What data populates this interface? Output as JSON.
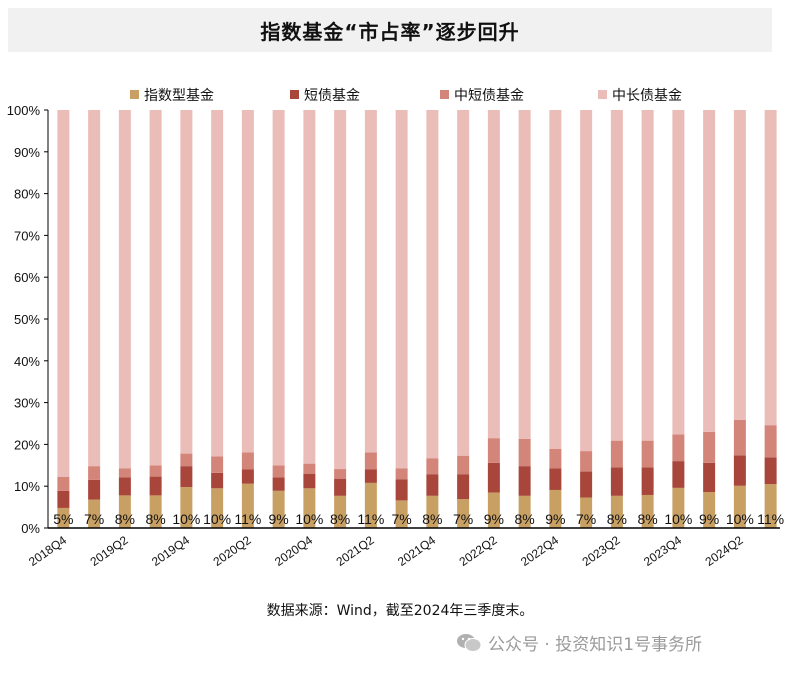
{
  "chart_data": {
    "type": "bar",
    "stacked": true,
    "title": "指数基金“市占率”逐步回升",
    "xlabel": "",
    "ylabel": "",
    "ylim": [
      0,
      100
    ],
    "yticks": [
      "0%",
      "10%",
      "20%",
      "30%",
      "40%",
      "50%",
      "60%",
      "70%",
      "80%",
      "90%",
      "100%"
    ],
    "legend_position": "top",
    "grid": false,
    "categories": [
      "2018Q4",
      "2019Q1",
      "2019Q2",
      "2019Q3",
      "2019Q4",
      "2020Q1",
      "2020Q2",
      "2020Q3",
      "2020Q4",
      "2021Q1",
      "2021Q2",
      "2021Q3",
      "2021Q4",
      "2022Q1",
      "2022Q2",
      "2022Q3",
      "2022Q4",
      "2023Q1",
      "2023Q2",
      "2023Q3",
      "2023Q4",
      "2024Q1",
      "2024Q2",
      "2024Q3"
    ],
    "xtick_labels": [
      "2018Q4",
      "",
      "2019Q2",
      "",
      "2019Q4",
      "",
      "2020Q2",
      "",
      "2020Q4",
      "",
      "2021Q2",
      "",
      "2021Q4",
      "",
      "2022Q2",
      "",
      "2022Q4",
      "",
      "2023Q2",
      "",
      "2023Q4",
      "",
      "2024Q2",
      ""
    ],
    "series": [
      {
        "name": "指数型基金",
        "color": "#c9a063",
        "values": [
          4.8,
          6.8,
          7.8,
          7.8,
          9.8,
          9.5,
          10.6,
          8.9,
          9.5,
          7.7,
          10.8,
          6.6,
          7.7,
          6.9,
          8.5,
          7.7,
          9.1,
          7.3,
          7.7,
          7.9,
          9.6,
          8.6,
          10.1,
          10.5
        ],
        "labels": [
          "5%",
          "7%",
          "8%",
          "8%",
          "10%",
          "10%",
          "11%",
          "9%",
          "10%",
          "8%",
          "11%",
          "7%",
          "8%",
          "7%",
          "9%",
          "8%",
          "9%",
          "7%",
          "8%",
          "8%",
          "10%",
          "9%",
          "10%",
          "11%"
        ]
      },
      {
        "name": "短债基金",
        "color": "#a8463c",
        "values": [
          4.1,
          4.7,
          4.3,
          4.5,
          5.0,
          3.7,
          3.4,
          3.2,
          3.5,
          4.1,
          3.2,
          5.0,
          5.1,
          5.9,
          7.1,
          7.1,
          5.2,
          6.2,
          6.8,
          6.6,
          6.4,
          7.0,
          7.3,
          6.4
        ]
      },
      {
        "name": "中短债基金",
        "color": "#d4857a",
        "values": [
          3.3,
          3.3,
          2.2,
          2.7,
          3.0,
          3.9,
          4.1,
          2.9,
          2.4,
          2.3,
          4.1,
          2.7,
          3.9,
          4.5,
          5.9,
          6.5,
          4.6,
          4.9,
          6.4,
          6.4,
          6.4,
          7.4,
          8.5,
          7.7
        ]
      },
      {
        "name": "中长债基金",
        "color": "#ebbdb8",
        "values": [
          87.8,
          85.2,
          85.7,
          85.0,
          82.2,
          82.9,
          81.9,
          85.0,
          84.6,
          85.9,
          81.9,
          85.7,
          83.3,
          82.7,
          78.5,
          78.7,
          81.1,
          81.6,
          79.1,
          79.1,
          77.6,
          77.0,
          74.1,
          75.4
        ]
      }
    ]
  },
  "source": "数据来源：Wind，截至2024年三季度末。",
  "watermark": "公众号 · 投资知识1号事务所"
}
